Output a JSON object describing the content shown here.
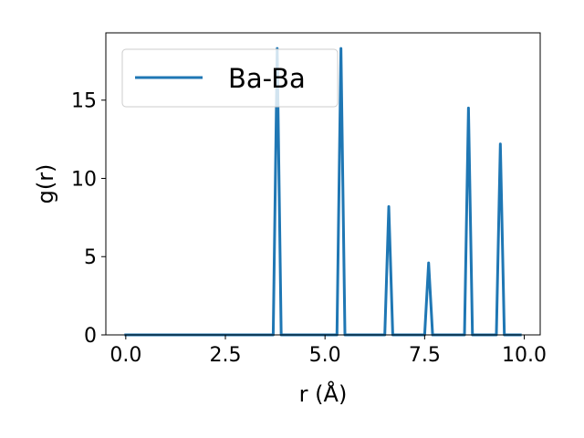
{
  "chart_data": {
    "type": "line",
    "title": "",
    "xlabel": "r (Å)",
    "ylabel": "g(r)",
    "xlim": [
      -0.5,
      10.4
    ],
    "ylim": [
      0,
      19.3
    ],
    "xticks": [
      0.0,
      2.5,
      5.0,
      7.5,
      10.0
    ],
    "xtick_labels": [
      "0.0",
      "2.5",
      "5.0",
      "7.5",
      "10.0"
    ],
    "yticks": [
      0,
      5,
      10,
      15
    ],
    "ytick_labels": [
      "0",
      "5",
      "10",
      "15"
    ],
    "grid": false,
    "legend_position": "top-left",
    "series": [
      {
        "name": "Ba-Ba",
        "color": "#1f77b4",
        "x": [
          0.0,
          3.7,
          3.8,
          3.9,
          5.3,
          5.4,
          5.5,
          6.5,
          6.6,
          6.7,
          7.5,
          7.6,
          7.7,
          8.5,
          8.6,
          8.7,
          9.3,
          9.4,
          9.5,
          9.9
        ],
        "y": [
          0,
          0,
          18.3,
          0,
          0,
          18.3,
          0,
          0,
          8.2,
          0,
          0,
          4.6,
          0,
          0,
          14.5,
          0,
          0,
          12.2,
          0,
          0
        ]
      }
    ]
  }
}
